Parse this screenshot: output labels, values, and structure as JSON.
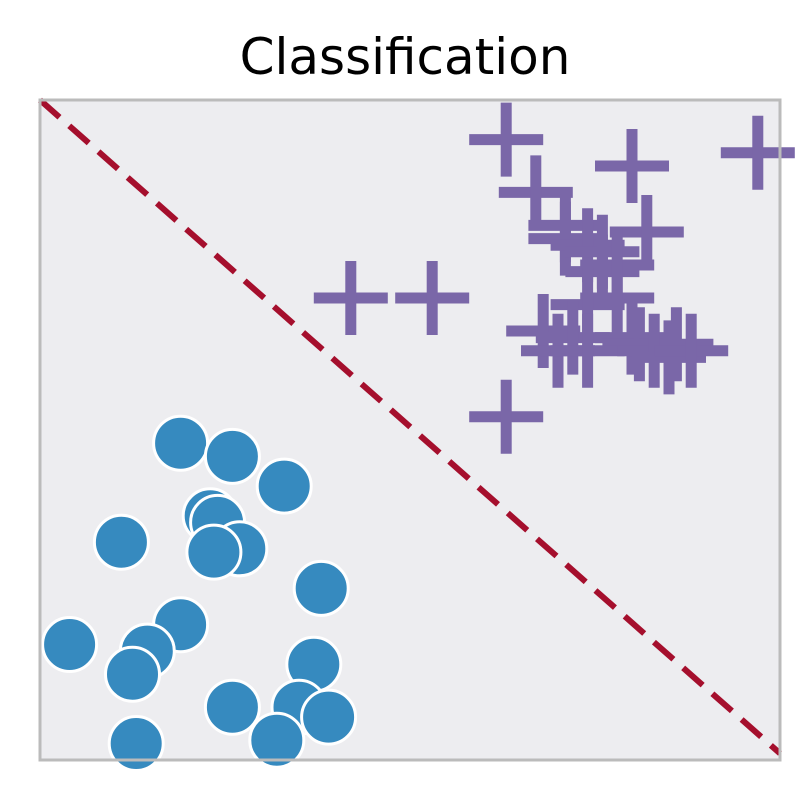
{
  "chart_data": {
    "type": "scatter",
    "title": "Classification",
    "xlabel": "",
    "ylabel": "",
    "xlim": [
      0,
      100
    ],
    "ylim": [
      0,
      100
    ],
    "grid": false,
    "ticks": false,
    "colors": {
      "background": "#ededf0",
      "frame": "#bbbbbb",
      "circle": "#368abf",
      "plus": "#7a67a8",
      "boundary": "#a50f2d"
    },
    "boundary": {
      "style": "dashed",
      "x": [
        0,
        100
      ],
      "y": [
        100,
        1
      ]
    },
    "series": [
      {
        "marker": "circle",
        "points": [
          [
            19,
            48
          ],
          [
            26,
            46
          ],
          [
            33,
            41.5
          ],
          [
            11,
            33
          ],
          [
            23,
            37
          ],
          [
            24,
            36
          ],
          [
            27,
            32
          ],
          [
            23.5,
            31.5
          ],
          [
            38,
            26
          ],
          [
            4,
            17.5
          ],
          [
            19,
            20.5
          ],
          [
            14.5,
            16.5
          ],
          [
            12.5,
            13
          ],
          [
            37,
            14.5
          ],
          [
            26,
            8
          ],
          [
            35,
            8
          ],
          [
            39,
            6.5
          ],
          [
            13,
            2.5
          ],
          [
            32,
            3
          ]
        ]
      },
      {
        "marker": "plus",
        "points": [
          [
            63,
            94
          ],
          [
            80,
            90
          ],
          [
            97,
            92
          ],
          [
            67,
            86
          ],
          [
            71,
            81
          ],
          [
            71,
            79
          ],
          [
            82,
            80
          ],
          [
            74,
            78
          ],
          [
            76,
            77
          ],
          [
            78,
            75
          ],
          [
            76,
            74
          ],
          [
            42,
            70
          ],
          [
            53,
            70
          ],
          [
            78,
            70
          ],
          [
            74,
            69
          ],
          [
            68,
            65
          ],
          [
            72,
            64
          ],
          [
            80,
            64
          ],
          [
            81,
            63
          ],
          [
            86,
            63
          ],
          [
            70,
            62
          ],
          [
            74,
            62
          ],
          [
            83,
            62
          ],
          [
            85,
            61
          ],
          [
            88,
            62
          ],
          [
            63,
            52
          ]
        ]
      }
    ]
  }
}
